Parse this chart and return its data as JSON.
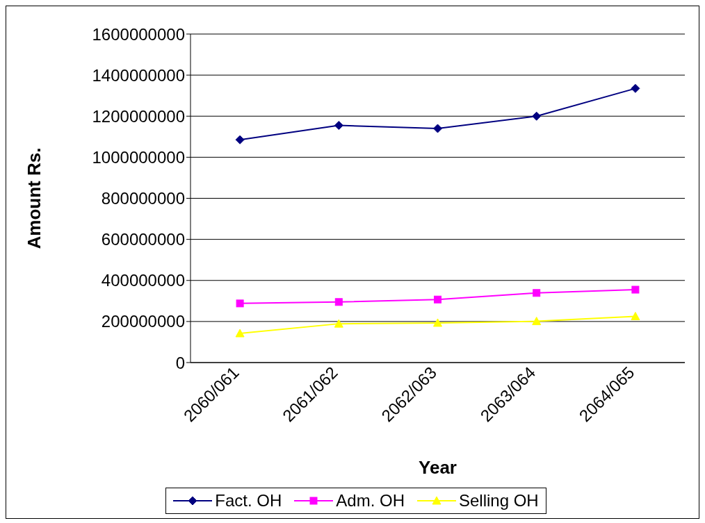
{
  "chart_data": {
    "type": "line",
    "xlabel": "Year",
    "ylabel": "Amount Rs.",
    "categories": [
      "2060/061",
      "2061/062",
      "2062/063",
      "2063/064",
      "2064/065"
    ],
    "series": [
      {
        "name": "Fact. OH",
        "color": "#000080",
        "marker": "diamond",
        "values": [
          1085000000,
          1155000000,
          1140000000,
          1200000000,
          1335000000
        ]
      },
      {
        "name": "Adm. OH",
        "color": "#ff00ff",
        "marker": "square",
        "values": [
          288000000,
          295000000,
          307000000,
          339000000,
          355000000
        ]
      },
      {
        "name": "Selling OH",
        "color": "#ffff00",
        "marker": "triangle",
        "values": [
          142000000,
          189000000,
          193000000,
          201000000,
          225000000
        ]
      }
    ],
    "ylim": [
      0,
      1600000000
    ],
    "yticks": [
      0,
      200000000,
      400000000,
      600000000,
      800000000,
      1000000000,
      1200000000,
      1400000000,
      1600000000
    ],
    "grid": "y",
    "legend": "bottom",
    "line_style": "solid"
  }
}
